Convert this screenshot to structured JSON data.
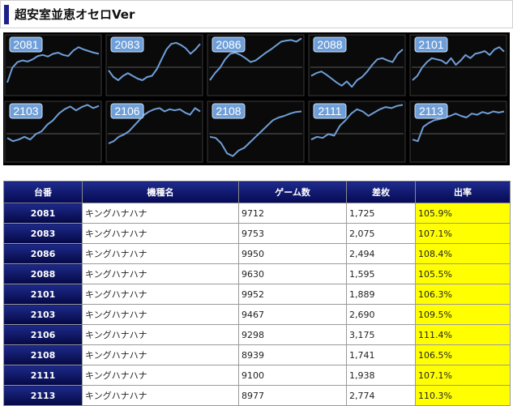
{
  "header": {
    "title": "超安室並恵オセロVer"
  },
  "table": {
    "headers": [
      "台番",
      "機種名",
      "ゲーム数",
      "差枚",
      "出率"
    ],
    "rows": [
      {
        "unit": "2081",
        "model": "キングハナハナ",
        "games": "9712",
        "diff": "1,725",
        "rate": "105.9%"
      },
      {
        "unit": "2083",
        "model": "キングハナハナ",
        "games": "9753",
        "diff": "2,075",
        "rate": "107.1%"
      },
      {
        "unit": "2086",
        "model": "キングハナハナ",
        "games": "9950",
        "diff": "2,494",
        "rate": "108.4%"
      },
      {
        "unit": "2088",
        "model": "キングハナハナ",
        "games": "9630",
        "diff": "1,595",
        "rate": "105.5%"
      },
      {
        "unit": "2101",
        "model": "キングハナハナ",
        "games": "9952",
        "diff": "1,889",
        "rate": "106.3%"
      },
      {
        "unit": "2103",
        "model": "キングハナハナ",
        "games": "9467",
        "diff": "2,690",
        "rate": "109.5%"
      },
      {
        "unit": "2106",
        "model": "キングハナハナ",
        "games": "9298",
        "diff": "3,175",
        "rate": "111.4%"
      },
      {
        "unit": "2108",
        "model": "キングハナハナ",
        "games": "8939",
        "diff": "1,741",
        "rate": "106.5%"
      },
      {
        "unit": "2111",
        "model": "キングハナハナ",
        "games": "9100",
        "diff": "1,938",
        "rate": "107.1%"
      },
      {
        "unit": "2113",
        "model": "キングハナハナ",
        "games": "8977",
        "diff": "2,774",
        "rate": "110.3%"
      }
    ]
  },
  "thumbnails": [
    {
      "label": "2081",
      "trend": [
        0.82,
        0.55,
        0.45,
        0.42,
        0.44,
        0.4,
        0.34,
        0.32,
        0.35,
        0.3,
        0.28,
        0.32,
        0.34,
        0.24,
        0.18,
        0.22,
        0.25,
        0.28,
        0.3
      ]
    },
    {
      "label": "2083",
      "trend": [
        0.6,
        0.72,
        0.78,
        0.7,
        0.65,
        0.7,
        0.75,
        0.78,
        0.72,
        0.7,
        0.58,
        0.4,
        0.22,
        0.12,
        0.1,
        0.14,
        0.2,
        0.3,
        0.22,
        0.12
      ]
    },
    {
      "label": "2086",
      "trend": [
        0.78,
        0.65,
        0.55,
        0.4,
        0.3,
        0.28,
        0.32,
        0.38,
        0.45,
        0.42,
        0.35,
        0.28,
        0.22,
        0.15,
        0.08,
        0.06,
        0.05,
        0.08,
        0.02
      ]
    },
    {
      "label": "2088",
      "trend": [
        0.7,
        0.65,
        0.62,
        0.68,
        0.75,
        0.82,
        0.88,
        0.8,
        0.9,
        0.78,
        0.72,
        0.62,
        0.5,
        0.4,
        0.38,
        0.42,
        0.45,
        0.3,
        0.22
      ]
    },
    {
      "label": "2101",
      "trend": [
        0.78,
        0.7,
        0.55,
        0.45,
        0.38,
        0.4,
        0.42,
        0.48,
        0.38,
        0.5,
        0.42,
        0.32,
        0.38,
        0.3,
        0.28,
        0.25,
        0.32,
        0.22,
        0.18,
        0.26
      ]
    },
    {
      "label": "2103",
      "trend": [
        0.62,
        0.68,
        0.65,
        0.6,
        0.65,
        0.55,
        0.5,
        0.38,
        0.3,
        0.18,
        0.1,
        0.05,
        0.12,
        0.06,
        0.02,
        0.08,
        0.04
      ]
    },
    {
      "label": "2106",
      "trend": [
        0.72,
        0.68,
        0.6,
        0.56,
        0.5,
        0.4,
        0.3,
        0.2,
        0.14,
        0.1,
        0.08,
        0.14,
        0.1,
        0.12,
        0.1,
        0.16,
        0.2,
        0.08,
        0.14
      ]
    },
    {
      "label": "2108",
      "trend": [
        0.6,
        0.62,
        0.72,
        0.9,
        0.95,
        0.85,
        0.8,
        0.7,
        0.6,
        0.5,
        0.4,
        0.3,
        0.25,
        0.22,
        0.18,
        0.15,
        0.14
      ]
    },
    {
      "label": "2111",
      "trend": [
        0.65,
        0.6,
        0.62,
        0.55,
        0.58,
        0.4,
        0.3,
        0.18,
        0.1,
        0.14,
        0.22,
        0.16,
        0.1,
        0.06,
        0.08,
        0.04,
        0.02
      ]
    },
    {
      "label": "2113",
      "trend": [
        0.65,
        0.68,
        0.42,
        0.35,
        0.3,
        0.28,
        0.25,
        0.22,
        0.18,
        0.22,
        0.25,
        0.18,
        0.2,
        0.15,
        0.18,
        0.14,
        0.16,
        0.14
      ]
    }
  ],
  "colors": {
    "accent": "#1d2088",
    "line": "#6f9fd8",
    "rate_bg": "#ffff00",
    "header_bg": "#050a55"
  }
}
